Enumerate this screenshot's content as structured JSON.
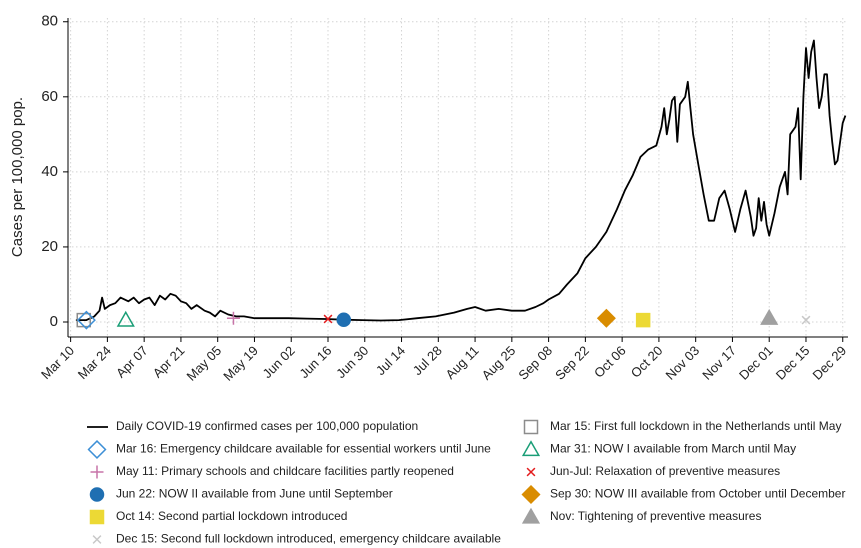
{
  "chart_data": {
    "type": "line",
    "ylabel": "Cases per 100,000 pop.",
    "xlim": [
      "Mar 09",
      "Dec 31"
    ],
    "xticks": [
      "Mar 10",
      "Mar 24",
      "Apr 07",
      "Apr 21",
      "May 05",
      "May 19",
      "Jun 02",
      "Jun 16",
      "Jun 30",
      "Jul 14",
      "Jul 28",
      "Aug 11",
      "Aug 25",
      "Sep 08",
      "Sep 22",
      "Oct 06",
      "Oct 20",
      "Nov 03",
      "Nov 17",
      "Dec 01",
      "Dec 15",
      "Dec 29"
    ],
    "ylim": [
      -4,
      81
    ],
    "yticks": [
      0,
      20,
      40,
      60,
      80
    ],
    "grid": true,
    "series": [
      {
        "name": "Daily COVID-19 confirmed cases per 100,000 population",
        "color": "#000000",
        "marker": "line",
        "x": [
          "Mar 12",
          "Mar 16",
          "Mar 19",
          "Mar 21",
          "Mar 22",
          "Mar 23",
          "Mar 25",
          "Mar 27",
          "Mar 29",
          "Apr 01",
          "Apr 03",
          "Apr 05",
          "Apr 07",
          "Apr 09",
          "Apr 11",
          "Apr 13",
          "Apr 15",
          "Apr 17",
          "Apr 19",
          "Apr 21",
          "Apr 23",
          "Apr 25",
          "Apr 27",
          "Apr 30",
          "May 02",
          "May 04",
          "May 06",
          "May 09",
          "May 12",
          "May 15",
          "May 19",
          "May 25",
          "Jun 01",
          "Jun 08",
          "Jun 15",
          "Jun 22",
          "Jun 29",
          "Jul 06",
          "Jul 13",
          "Jul 20",
          "Jul 27",
          "Aug 03",
          "Aug 08",
          "Aug 11",
          "Aug 15",
          "Aug 20",
          "Aug 25",
          "Aug 30",
          "Sep 03",
          "Sep 06",
          "Sep 08",
          "Sep 12",
          "Sep 15",
          "Sep 19",
          "Sep 22",
          "Sep 26",
          "Sep 30",
          "Oct 04",
          "Oct 07",
          "Oct 10",
          "Oct 13",
          "Oct 16",
          "Oct 19",
          "Oct 21",
          "Oct 22",
          "Oct 23",
          "Oct 24",
          "Oct 25",
          "Oct 26",
          "Oct 27",
          "Oct 28",
          "Oct 30",
          "Oct 31",
          "Nov 01",
          "Nov 02",
          "Nov 04",
          "Nov 06",
          "Nov 08",
          "Nov 10",
          "Nov 12",
          "Nov 14",
          "Nov 16",
          "Nov 18",
          "Nov 20",
          "Nov 22",
          "Nov 24",
          "Nov 25",
          "Nov 26",
          "Nov 27",
          "Nov 28",
          "Nov 29",
          "Nov 30",
          "Dec 01",
          "Dec 03",
          "Dec 05",
          "Dec 07",
          "Dec 08",
          "Dec 09",
          "Dec 11",
          "Dec 12",
          "Dec 13",
          "Dec 14",
          "Dec 15",
          "Dec 16",
          "Dec 17",
          "Dec 18",
          "Dec 19",
          "Dec 20",
          "Dec 21",
          "Dec 22",
          "Dec 23",
          "Dec 24",
          "Dec 25",
          "Dec 26",
          "Dec 27",
          "Dec 29",
          "Dec 30"
        ],
        "values": [
          0.5,
          0.5,
          1.5,
          3,
          6.5,
          3.5,
          4.5,
          5,
          6.5,
          5.5,
          6.5,
          5,
          6,
          6.5,
          4.5,
          7,
          6,
          7.5,
          7,
          5.5,
          5,
          3.5,
          4.5,
          3,
          2.5,
          1.5,
          3,
          2,
          1.5,
          1.5,
          1,
          1,
          1,
          0.9,
          0.8,
          0.6,
          0.5,
          0.4,
          0.5,
          1,
          1.5,
          2.5,
          3.5,
          4,
          3,
          3.5,
          3,
          3,
          4,
          5,
          6,
          7.5,
          10,
          13,
          17,
          20,
          24,
          30,
          35,
          39,
          44,
          46,
          47,
          52,
          57,
          50,
          54,
          59,
          60,
          48,
          58,
          60,
          64,
          57,
          50,
          42,
          34,
          27,
          27,
          33,
          35,
          30,
          24,
          30,
          35,
          28,
          23,
          25,
          33,
          27,
          32,
          26,
          23,
          29,
          36,
          40,
          34,
          50,
          52,
          57,
          38,
          60,
          73,
          65,
          72,
          75,
          65,
          57,
          60,
          66,
          66,
          55,
          48,
          42,
          43,
          53,
          55
        ]
      },
      {
        "name": "Mar 15: First full lockdown in the Netherlands until May",
        "color": "#8c8c8c",
        "marker": "square",
        "filled": false,
        "x": [
          "Mar 15"
        ],
        "values": [
          0.5
        ]
      },
      {
        "name": "Mar 16: Emergency childcare available for essential workers until June",
        "color": "#3d8fd6",
        "marker": "diamond",
        "filled": false,
        "x": [
          "Mar 16"
        ],
        "values": [
          0.5
        ]
      },
      {
        "name": "Mar 31: NOW I available from March until May",
        "color": "#1a9e77",
        "marker": "triangle",
        "filled": false,
        "x": [
          "Mar 31"
        ],
        "values": [
          0.5
        ]
      },
      {
        "name": "May 11: Primary schools and childcare facilities partly reopened",
        "color": "#c774a8",
        "marker": "plus",
        "filled": false,
        "x": [
          "May 11"
        ],
        "values": [
          1
        ]
      },
      {
        "name": "Jun-Jul: Relaxation of preventive measures",
        "color": "#e31a1c",
        "marker": "cross",
        "filled": false,
        "x": [
          "Jun 16"
        ],
        "values": [
          0.8
        ]
      },
      {
        "name": "Jun 22: NOW II available from June until September",
        "color": "#1f6fb2",
        "marker": "circle",
        "filled": true,
        "x": [
          "Jun 22"
        ],
        "values": [
          0.6
        ]
      },
      {
        "name": "Sep 30: NOW III available from October until December",
        "color": "#d98c00",
        "marker": "diamond",
        "filled": true,
        "x": [
          "Sep 30"
        ],
        "values": [
          1
        ]
      },
      {
        "name": "Oct 14: Second partial lockdown introduced",
        "color": "#ecd935",
        "marker": "square",
        "filled": true,
        "x": [
          "Oct 14"
        ],
        "values": [
          0.5
        ]
      },
      {
        "name": "Nov: Tightening of preventive measures",
        "color": "#a0a0a0",
        "marker": "triangle",
        "filled": true,
        "x": [
          "Dec 01"
        ],
        "values": [
          1
        ]
      },
      {
        "name": "Dec 15: Second full lockdown introduced, emergency childcare available",
        "color": "#c8c8c8",
        "marker": "cross",
        "filled": false,
        "x": [
          "Dec 15"
        ],
        "values": [
          0.5
        ]
      }
    ]
  }
}
